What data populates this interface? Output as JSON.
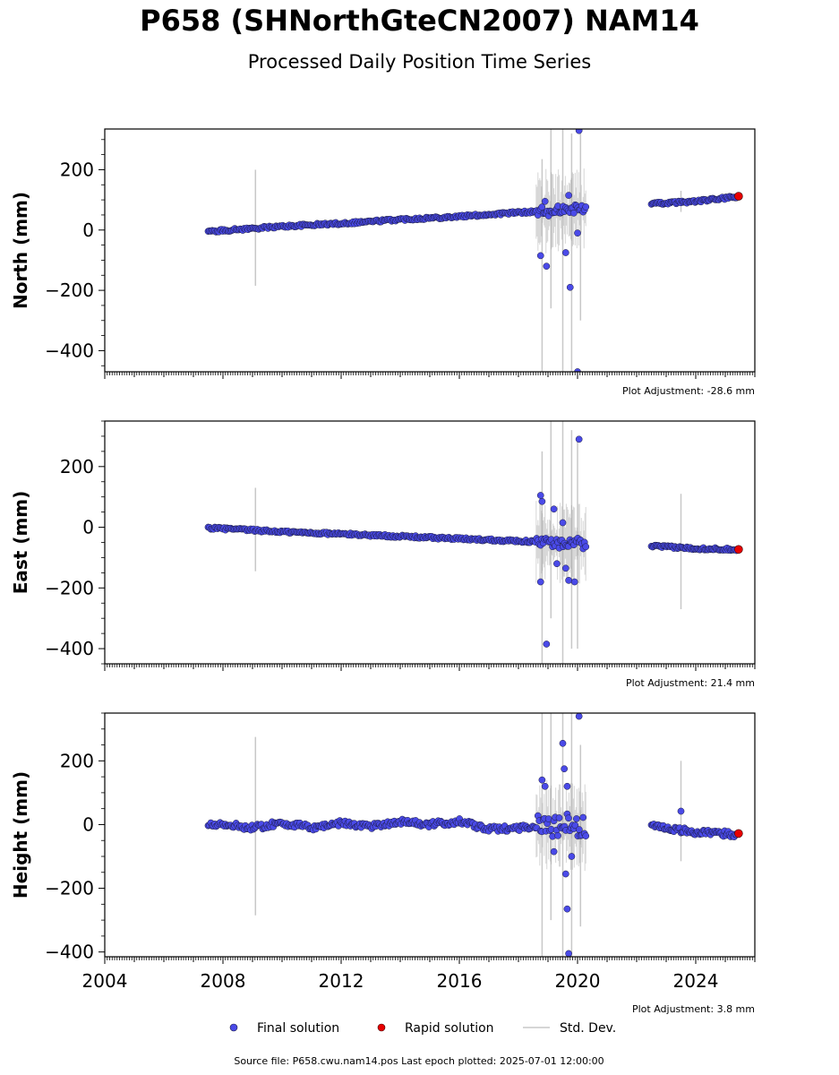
{
  "title": "P658 (SHNorthGteCN2007) NAM14",
  "subtitle": "Processed Daily Position Time Series",
  "legend": {
    "final": "Final solution",
    "rapid": "Rapid solution",
    "std": "Std. Dev."
  },
  "footer": "Source file: P658.cwu.nam14.pos  Last epoch plotted: 2025-07-01 12:00:00",
  "colors": {
    "final": "#4a4ae8",
    "rapid": "#e80000",
    "std": "#c8c8c8",
    "outline": "#1a1a3a"
  },
  "chart_data": [
    {
      "type": "scatter",
      "ylabel": "North (mm)",
      "adjustment": "Plot Adjustment: -28.6 mm",
      "xlim": [
        2004,
        2026
      ],
      "ylim": [
        -470,
        335
      ],
      "yticks": [
        -400,
        -200,
        0,
        200
      ],
      "yticklabels": [
        "−400",
        "−200",
        "0",
        "200"
      ],
      "series": [
        {
          "name": "Final solution",
          "trend": [
            [
              2007.5,
              -5
            ],
            [
              2010.0,
              12
            ],
            [
              2012.0,
              22
            ],
            [
              2014.0,
              35
            ],
            [
              2016.0,
              45
            ],
            [
              2018.0,
              58
            ],
            [
              2019.0,
              63
            ],
            [
              2020.3,
              72
            ]
          ],
          "trend2": [
            [
              2022.5,
              87
            ],
            [
              2024.0,
              95
            ],
            [
              2025.4,
              110
            ]
          ],
          "outliers": [
            [
              2018.75,
              -85
            ],
            [
              2018.95,
              -120
            ],
            [
              2019.6,
              -75
            ],
            [
              2019.75,
              -190
            ],
            [
              2020.0,
              -10
            ],
            [
              2020.05,
              330
            ],
            [
              2020.0,
              -470
            ],
            [
              2019.7,
              115
            ],
            [
              2018.9,
              95
            ]
          ]
        },
        {
          "name": "Rapid solution",
          "points": [
            [
              2025.45,
              112
            ]
          ]
        }
      ],
      "std_bars": [
        [
          2009.1,
          -185,
          200
        ],
        [
          2018.8,
          -470,
          235
        ],
        [
          2019.1,
          -260,
          335
        ],
        [
          2019.5,
          -470,
          335
        ],
        [
          2019.8,
          -470,
          320
        ],
        [
          2020.1,
          -300,
          330
        ],
        [
          2023.5,
          60,
          130
        ]
      ]
    },
    {
      "type": "scatter",
      "ylabel": "East (mm)",
      "adjustment": "Plot Adjustment: 21.4 mm",
      "xlim": [
        2004,
        2026
      ],
      "ylim": [
        -450,
        350
      ],
      "yticks": [
        -400,
        -200,
        0,
        200
      ],
      "yticklabels": [
        "−400",
        "−200",
        "0",
        "200"
      ],
      "series": [
        {
          "name": "Final solution",
          "trend": [
            [
              2007.5,
              -2
            ],
            [
              2010.0,
              -15
            ],
            [
              2012.0,
              -22
            ],
            [
              2014.0,
              -30
            ],
            [
              2016.0,
              -38
            ],
            [
              2018.0,
              -45
            ],
            [
              2019.0,
              -50
            ],
            [
              2020.3,
              -55
            ]
          ],
          "trend2": [
            [
              2022.5,
              -62
            ],
            [
              2024.0,
              -70
            ],
            [
              2025.4,
              -73
            ]
          ],
          "outliers": [
            [
              2018.75,
              105
            ],
            [
              2018.8,
              85
            ],
            [
              2018.75,
              -180
            ],
            [
              2018.95,
              -385
            ],
            [
              2019.2,
              60
            ],
            [
              2019.5,
              15
            ],
            [
              2019.7,
              -175
            ],
            [
              2019.9,
              -180
            ],
            [
              2020.05,
              290
            ],
            [
              2019.3,
              -120
            ],
            [
              2019.6,
              -135
            ]
          ]
        },
        {
          "name": "Rapid solution",
          "points": [
            [
              2025.45,
              -73
            ]
          ]
        }
      ],
      "std_bars": [
        [
          2009.1,
          -145,
          130
        ],
        [
          2018.8,
          -450,
          250
        ],
        [
          2019.1,
          -300,
          350
        ],
        [
          2019.5,
          -450,
          350
        ],
        [
          2019.8,
          -400,
          320
        ],
        [
          2020.0,
          -400,
          300
        ],
        [
          2023.5,
          -270,
          110
        ]
      ]
    },
    {
      "type": "scatter",
      "ylabel": "Height (mm)",
      "adjustment": "Plot Adjustment: 3.8 mm",
      "xlim": [
        2004,
        2026
      ],
      "ylim": [
        -415,
        350
      ],
      "yticks": [
        -400,
        -200,
        0,
        200
      ],
      "yticklabels": [
        "−400",
        "−200",
        "0",
        "200"
      ],
      "xticks": [
        2004,
        2008,
        2012,
        2016,
        2020,
        2024
      ],
      "xticklabels": [
        "2004",
        "2008",
        "2012",
        "2016",
        "2020",
        "2024"
      ],
      "series": [
        {
          "name": "Final solution",
          "trend": [
            [
              2007.5,
              5
            ],
            [
              2009.0,
              -10
            ],
            [
              2010.0,
              5
            ],
            [
              2011.0,
              -10
            ],
            [
              2012.0,
              5
            ],
            [
              2013.0,
              -5
            ],
            [
              2014.0,
              10
            ],
            [
              2015.0,
              0
            ],
            [
              2016.0,
              10
            ],
            [
              2017.0,
              -15
            ],
            [
              2018.0,
              -10
            ],
            [
              2019.0,
              0
            ],
            [
              2020.3,
              -10
            ]
          ],
          "trend2": [
            [
              2022.5,
              0
            ],
            [
              2023.0,
              -10
            ],
            [
              2024.0,
              -25
            ],
            [
              2025.4,
              -30
            ]
          ],
          "outliers": [
            [
              2018.8,
              140
            ],
            [
              2018.9,
              120
            ],
            [
              2019.5,
              255
            ],
            [
              2019.55,
              175
            ],
            [
              2019.65,
              120
            ],
            [
              2019.6,
              -155
            ],
            [
              2019.65,
              -265
            ],
            [
              2019.7,
              -405
            ],
            [
              2019.8,
              -100
            ],
            [
              2019.2,
              -85
            ],
            [
              2020.05,
              340
            ],
            [
              2023.5,
              42
            ]
          ]
        },
        {
          "name": "Rapid solution",
          "points": [
            [
              2025.45,
              -28
            ]
          ]
        }
      ],
      "std_bars": [
        [
          2009.1,
          -285,
          275
        ],
        [
          2018.8,
          -415,
          350
        ],
        [
          2019.1,
          -300,
          350
        ],
        [
          2019.5,
          -415,
          350
        ],
        [
          2019.8,
          -415,
          350
        ],
        [
          2020.1,
          -320,
          250
        ],
        [
          2023.5,
          -115,
          200
        ]
      ]
    }
  ]
}
